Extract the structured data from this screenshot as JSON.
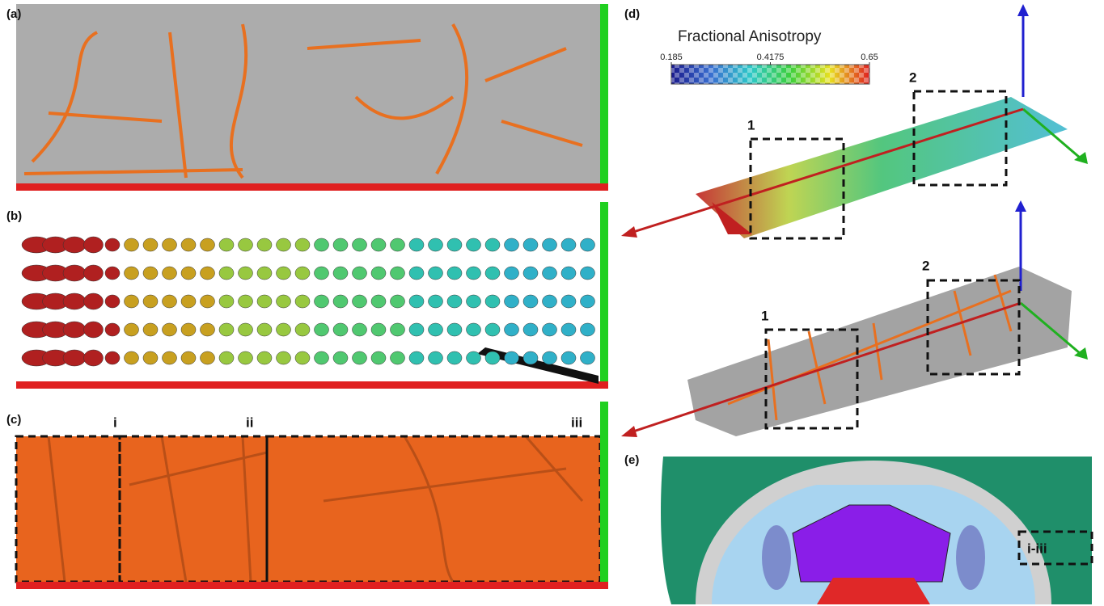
{
  "panels": [
    {
      "label": "(a)"
    },
    {
      "label": "(b)"
    },
    {
      "label": "(c)",
      "regions": [
        "i",
        "ii",
        "iii"
      ]
    },
    {
      "label": "(d)",
      "colorbar": {
        "title": "Fractional Anisotropy",
        "range": [
          0.185,
          0.65
        ],
        "ticks": [
          0.185,
          0.4175,
          0.65
        ]
      },
      "boxes_top": [
        "1",
        "2"
      ],
      "boxes_bottom": [
        "1",
        "2"
      ]
    },
    {
      "label": "(e)",
      "box": "i-iii"
    }
  ]
}
